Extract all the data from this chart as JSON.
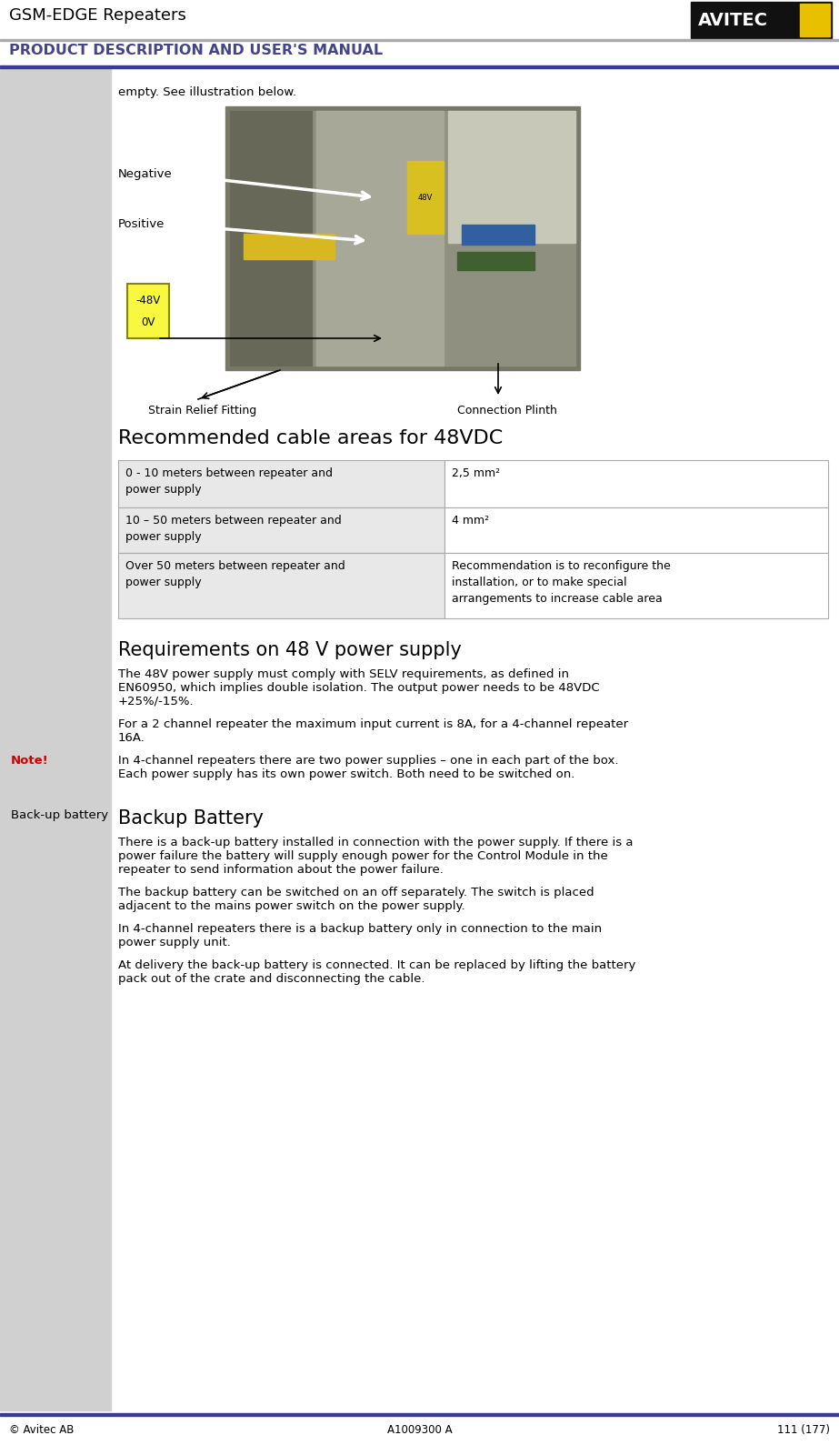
{
  "header_title": "GSM-EDGE Repeaters",
  "header_subtitle": "PRODUCT DESCRIPTION AND USER'S MANUAL",
  "footer_left": "© Avitec AB",
  "footer_center": "A1009300 A",
  "footer_right": "111 (177)",
  "main_text_intro": "empty. See illustration below.",
  "label_negative": "Negative",
  "label_positive": "Positive",
  "label_strain": "Strain Relief Fitting",
  "label_conn": "Connection Plinth",
  "section1_title": "Recommended cable areas for 48VDC",
  "table_col1_rows": [
    "0 - 10 meters between repeater and\npower supply",
    "10 – 50 meters between repeater and\npower supply",
    "Over 50 meters between repeater and\npower supply"
  ],
  "table_col2_rows": [
    "2,5 mm²",
    "4 mm²",
    "Recommendation is to reconfigure the\ninstallation, or to make special\narrangements to increase cable area"
  ],
  "section2_title": "Requirements on 48 V power supply",
  "para1_lines": [
    "The 48V power supply must comply with SELV requirements, as defined in",
    "EN60950, which implies double isolation. The output power needs to be 48VDC",
    "+25%/-15%."
  ],
  "para2_lines": [
    "For a 2 channel repeater the maximum input current is 8A, for a 4-channel repeater",
    "16A."
  ],
  "note_label": "Note!",
  "note_lines": [
    "In 4-channel repeaters there are two power supplies – one in each part of the box.",
    "Each power supply has its own power switch. Both need to be switched on."
  ],
  "backup_label": "Back-up battery",
  "section3_title": "Backup Battery",
  "backup_para1_lines": [
    "There is a back-up battery installed in connection with the power supply. If there is a",
    "power failure the battery will supply enough power for the Control Module in the",
    "repeater to send information about the power failure."
  ],
  "backup_para2_lines": [
    "The backup battery can be switched on an off separately. The switch is placed",
    "adjacent to the mains power switch on the power supply."
  ],
  "backup_para3_lines": [
    "In 4-channel repeaters there is a backup battery only in connection to the main",
    "power supply unit."
  ],
  "backup_para4_lines": [
    "At delivery the back-up battery is connected. It can be replaced by lifting the battery",
    "pack out of the crate and disconnecting the cable."
  ],
  "page_bg": "#ffffff",
  "left_col_bg": "#d0d0d0",
  "header_line_color": "#3a3a9a",
  "table_border_color": "#aaaaaa",
  "table_bg_col1": "#e8e8e8",
  "note_color": "#cc0000",
  "avitec_bg": "#111111",
  "avitec_text": "#ffffff",
  "avitec_yellow": "#e8c000",
  "subtitle_color": "#444488"
}
